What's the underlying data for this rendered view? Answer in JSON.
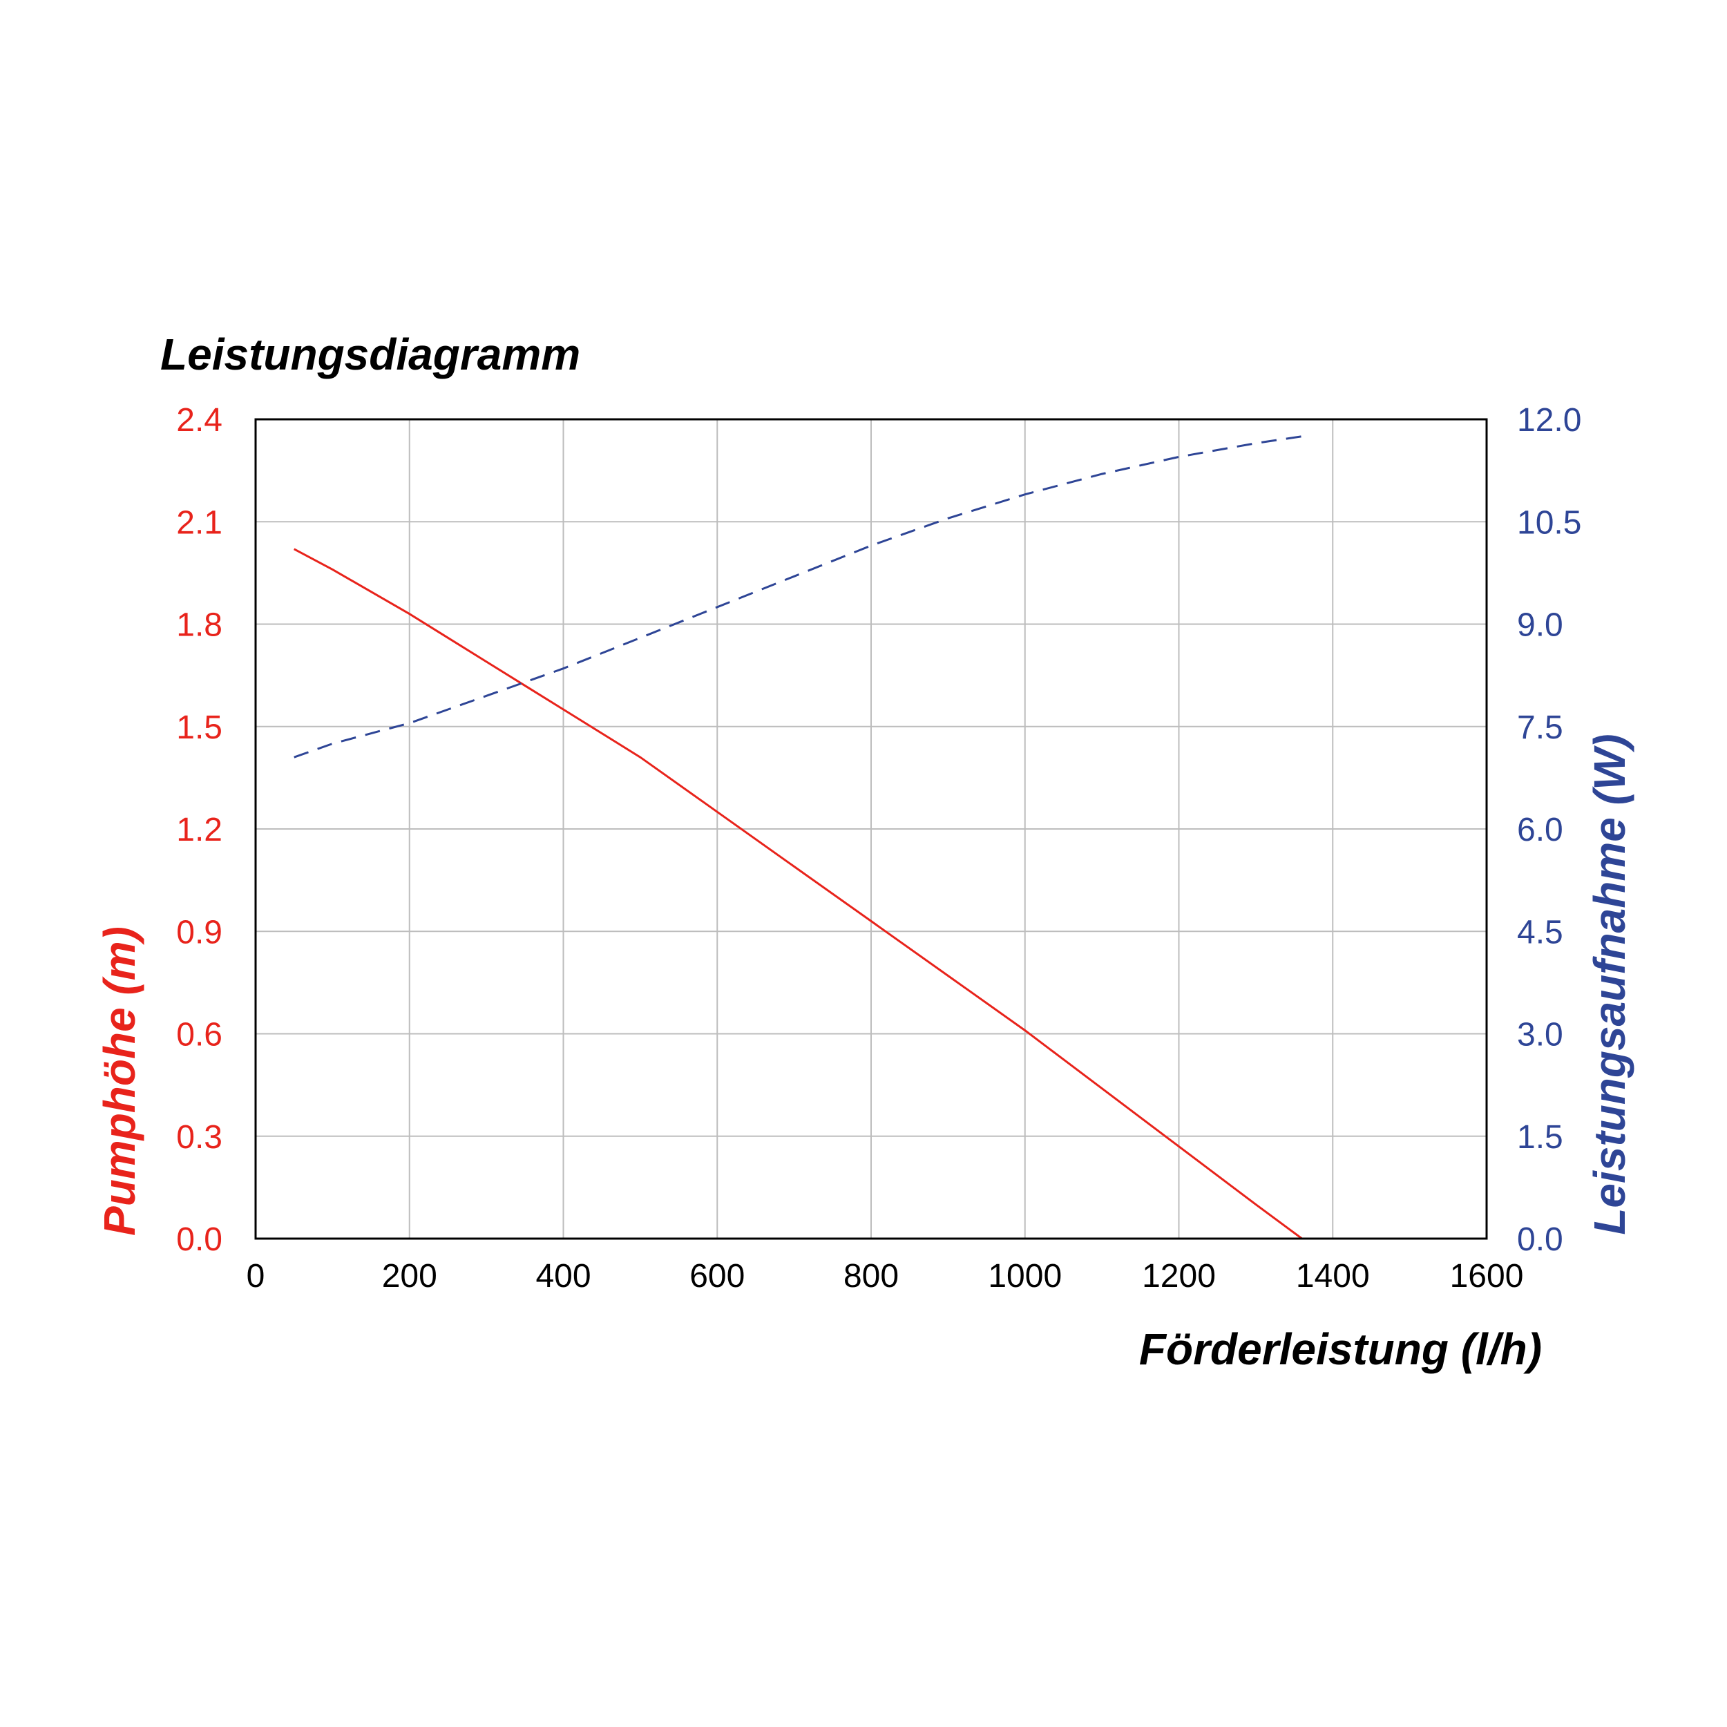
{
  "chart_data": {
    "type": "line",
    "title": "Leistungsdiagramm",
    "xlabel": "Förderleistung (l/h)",
    "ylabel_left": "Pumphöhe (m)",
    "ylabel_right": "Leistungsaufnahme (W)",
    "xlim": [
      0,
      1600
    ],
    "xticks": [
      "0",
      "200",
      "400",
      "600",
      "800",
      "1000",
      "1200",
      "1400",
      "1600"
    ],
    "ylim_left": [
      0,
      2.4
    ],
    "yticks_left": [
      "0.0",
      "0.3",
      "0.6",
      "0.9",
      "1.2",
      "1.5",
      "1.8",
      "2.1",
      "2.4"
    ],
    "ylim_right": [
      0,
      12
    ],
    "yticks_right": [
      "0.0",
      "1.5",
      "3.0",
      "4.5",
      "6.0",
      "7.5",
      "9.0",
      "10.5",
      "12.0"
    ],
    "grid": true,
    "series": [
      {
        "axis": "left",
        "color": "#e8231b",
        "dash": "solid",
        "x": [
          50,
          100,
          200,
          300,
          400,
          500,
          600,
          700,
          800,
          900,
          1000,
          1100,
          1200,
          1300,
          1360
        ],
        "y": [
          2.02,
          1.96,
          1.83,
          1.69,
          1.55,
          1.41,
          1.25,
          1.09,
          0.93,
          0.77,
          0.61,
          0.44,
          0.27,
          0.1,
          0.0
        ]
      },
      {
        "axis": "right",
        "color": "#2e4596",
        "dash": "dashed",
        "x": [
          50,
          100,
          200,
          300,
          400,
          500,
          600,
          700,
          800,
          900,
          1000,
          1100,
          1200,
          1300,
          1360
        ],
        "y": [
          7.05,
          7.25,
          7.55,
          7.95,
          8.35,
          8.8,
          9.25,
          9.7,
          10.15,
          10.55,
          10.9,
          11.2,
          11.45,
          11.65,
          11.75
        ]
      }
    ]
  },
  "colors": {
    "left_axis": "#e8231b",
    "right_axis": "#2e4596",
    "grid": "#bdbdbd",
    "frame": "#000000"
  }
}
